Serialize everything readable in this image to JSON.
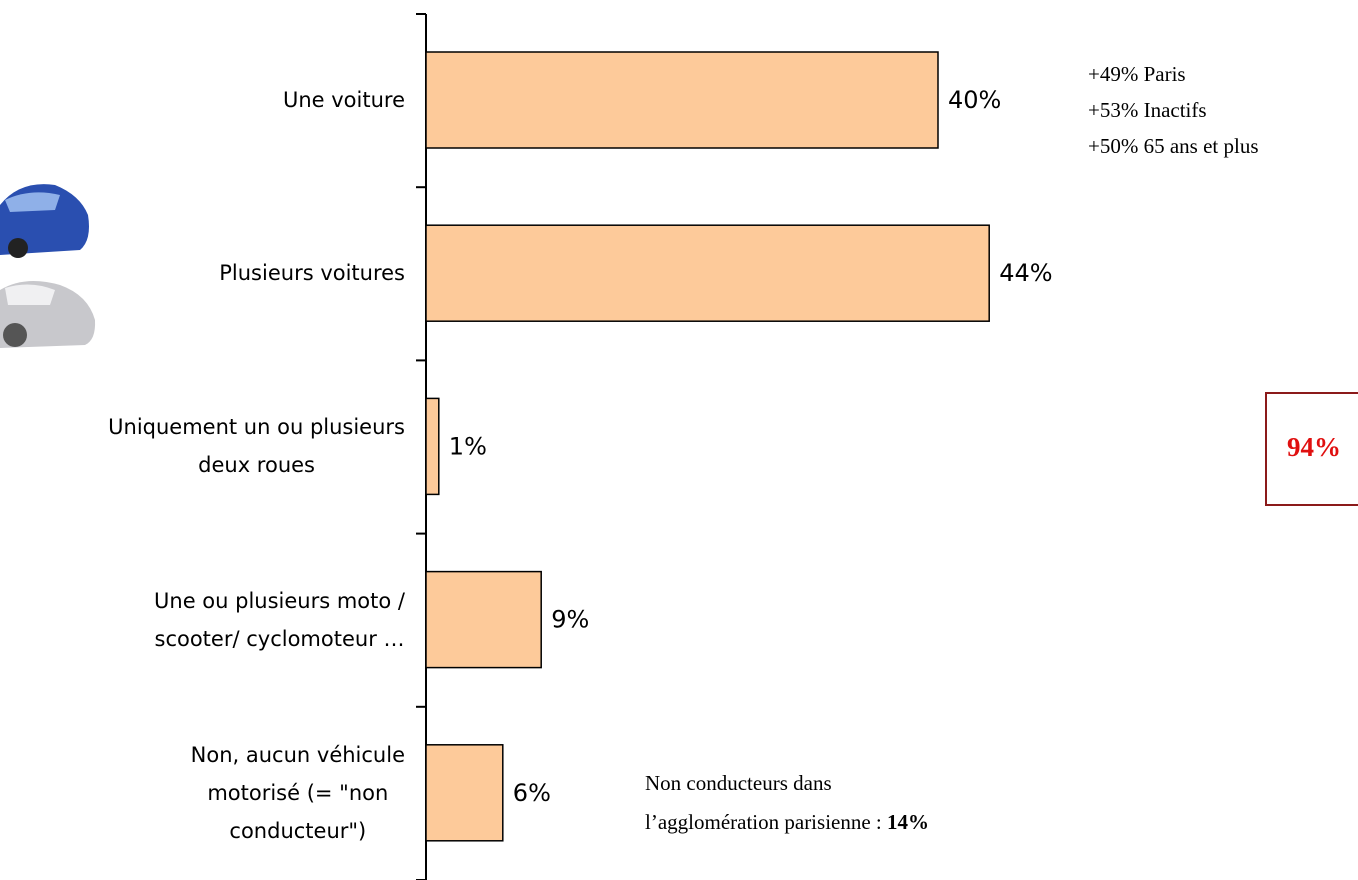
{
  "chart_data": {
    "type": "hbar",
    "categories": [
      "Une voiture",
      "Plusieurs voitures",
      "Uniquement un ou plusieurs\ndeux roues",
      "Une ou plusieurs moto /\nscooter/ cyclomoteur …",
      "Non, aucun véhicule\nmotorisé (= \"non\nconducteur\")"
    ],
    "values": [
      40,
      44,
      1,
      9,
      6
    ],
    "value_labels": [
      "40%",
      "44%",
      "1%",
      "9%",
      "6%"
    ],
    "color": "#fdca9a",
    "annotations": {
      "side_notes": [
        "+49% Paris",
        "+53% Inactifs",
        "+50% 65 ans et plus"
      ],
      "total_box": "94%",
      "bottom_note": {
        "lines": [
          "Non conducteurs dans",
          "l’agglomération parisienne :"
        ],
        "bold": "14%"
      }
    }
  }
}
